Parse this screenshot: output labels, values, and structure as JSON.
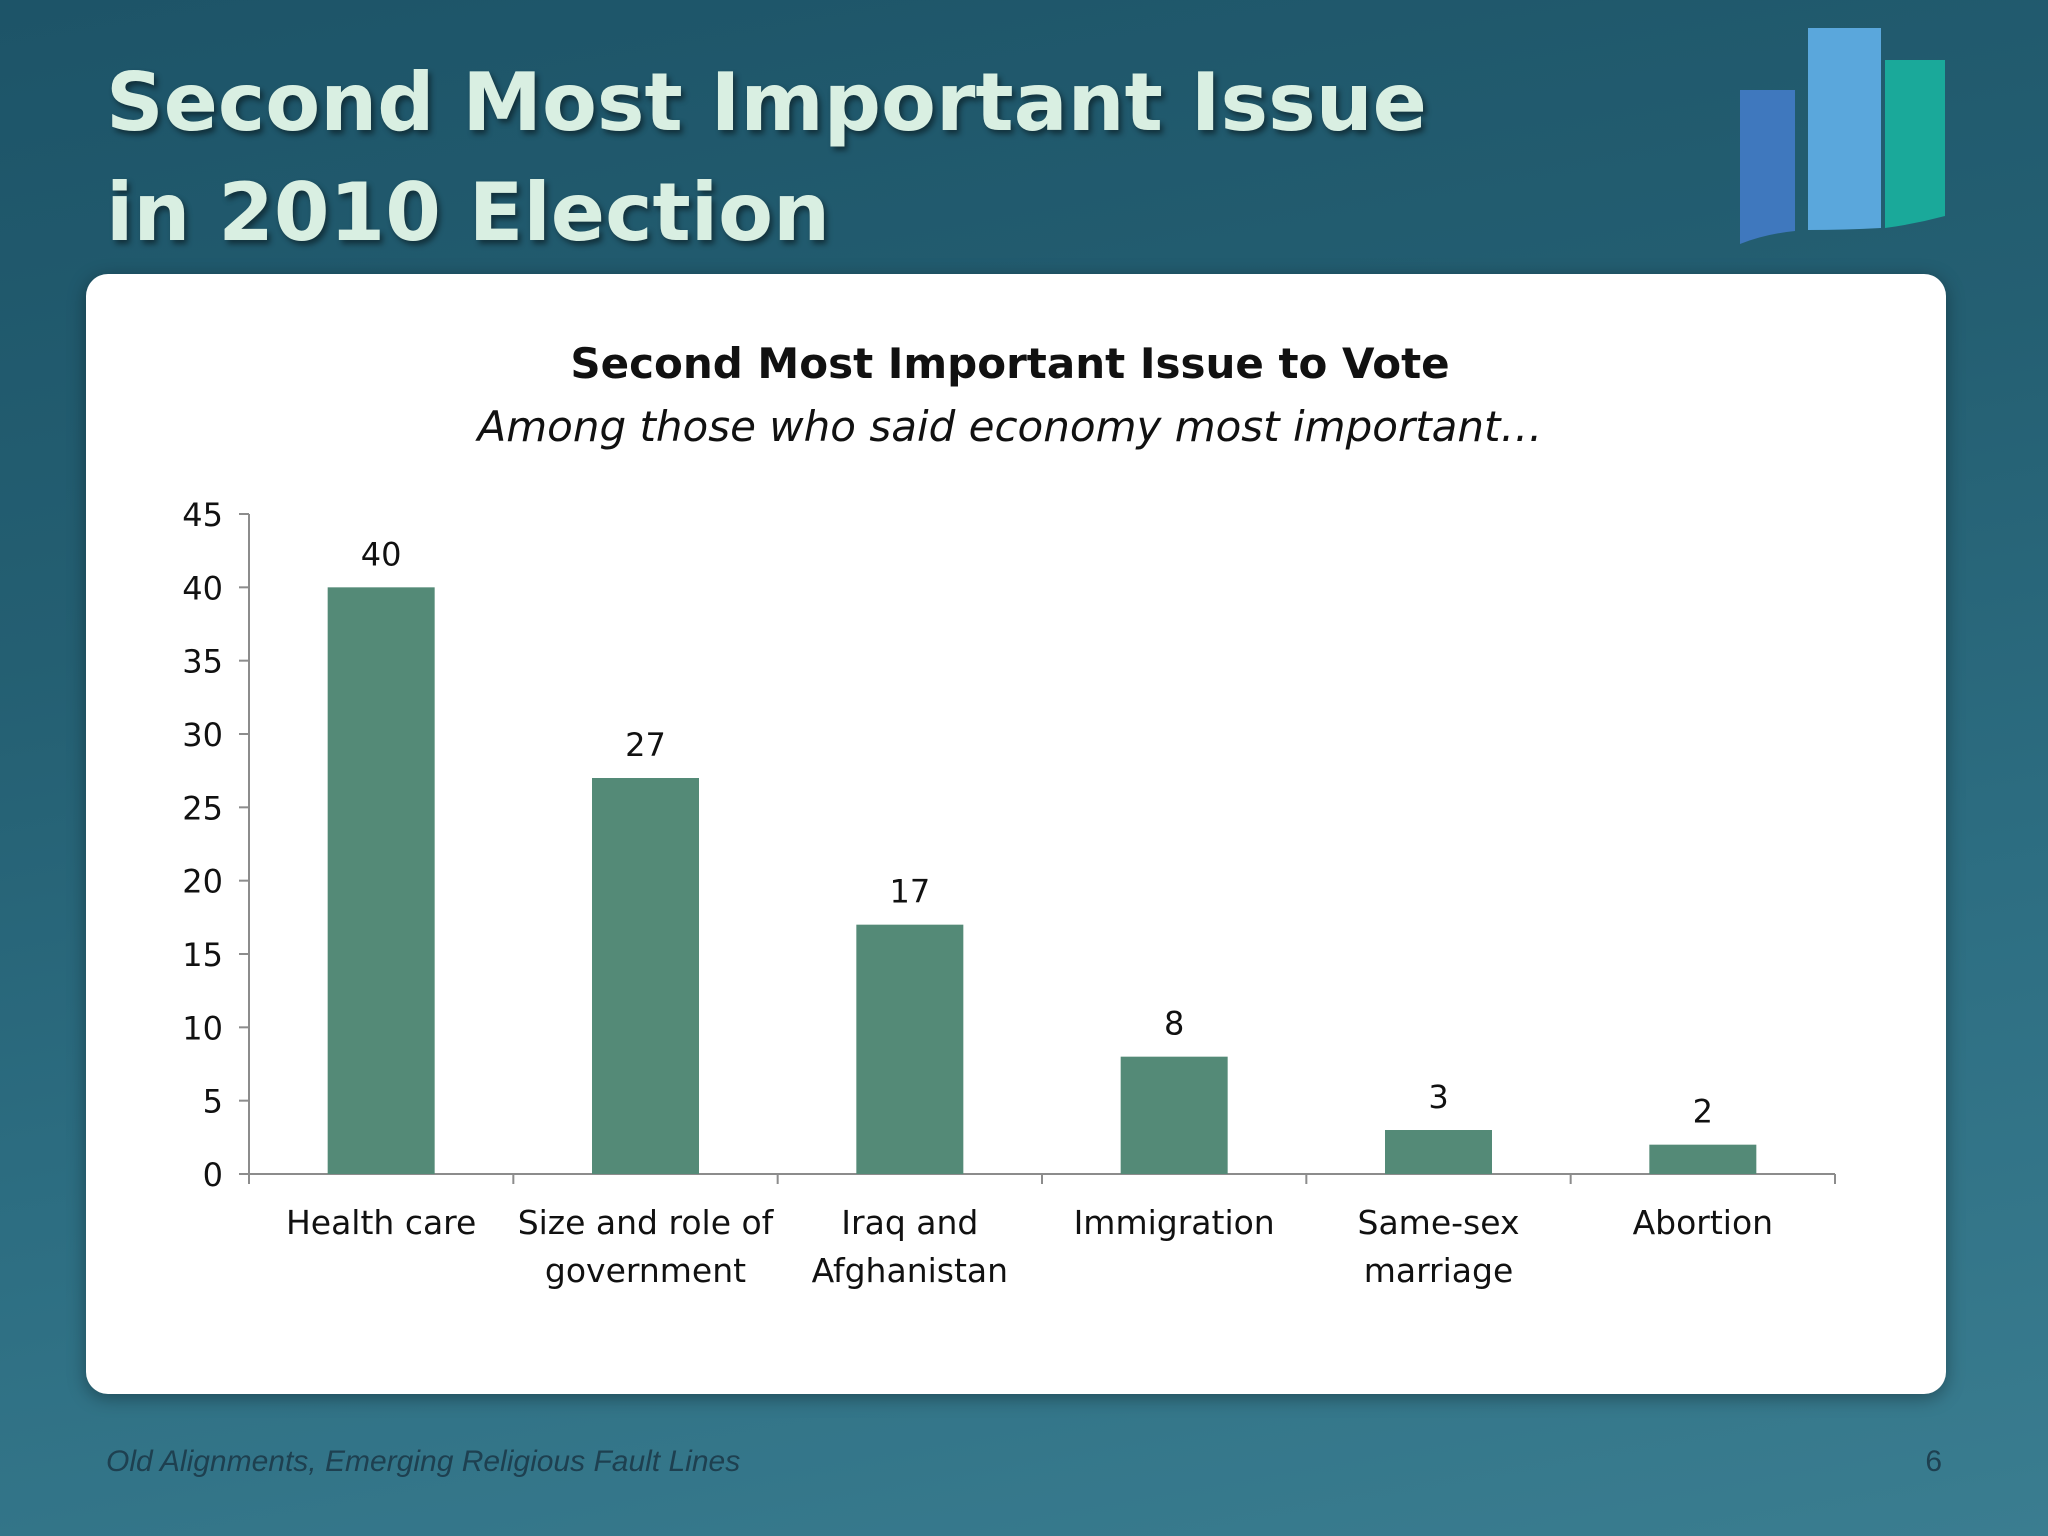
{
  "slide": {
    "title_line1": "Second Most Important Issue",
    "title_line2": "in 2010 Election",
    "footer": "Old Alignments, Emerging Religious Fault Lines",
    "page_number": "6"
  },
  "colors": {
    "bar": "#548a77",
    "title_text": "#d9efe2",
    "logo_bars": [
      "#3f78be",
      "#5aa7dc",
      "#1aa99a"
    ]
  },
  "chart_data": {
    "type": "bar",
    "title": "Second Most Important Issue to Vote",
    "subtitle": "Among those who said economy most important…",
    "categories": [
      [
        "Health care"
      ],
      [
        "Size and role of",
        "government"
      ],
      [
        "Iraq and",
        "Afghanistan"
      ],
      [
        "Immigration"
      ],
      [
        "Same-sex",
        "marriage"
      ],
      [
        "Abortion"
      ]
    ],
    "values": [
      40,
      27,
      17,
      8,
      3,
      2
    ],
    "data_labels": true,
    "ylim": [
      0,
      45
    ],
    "ytick_step": 5,
    "grid": false,
    "legend": "none"
  }
}
